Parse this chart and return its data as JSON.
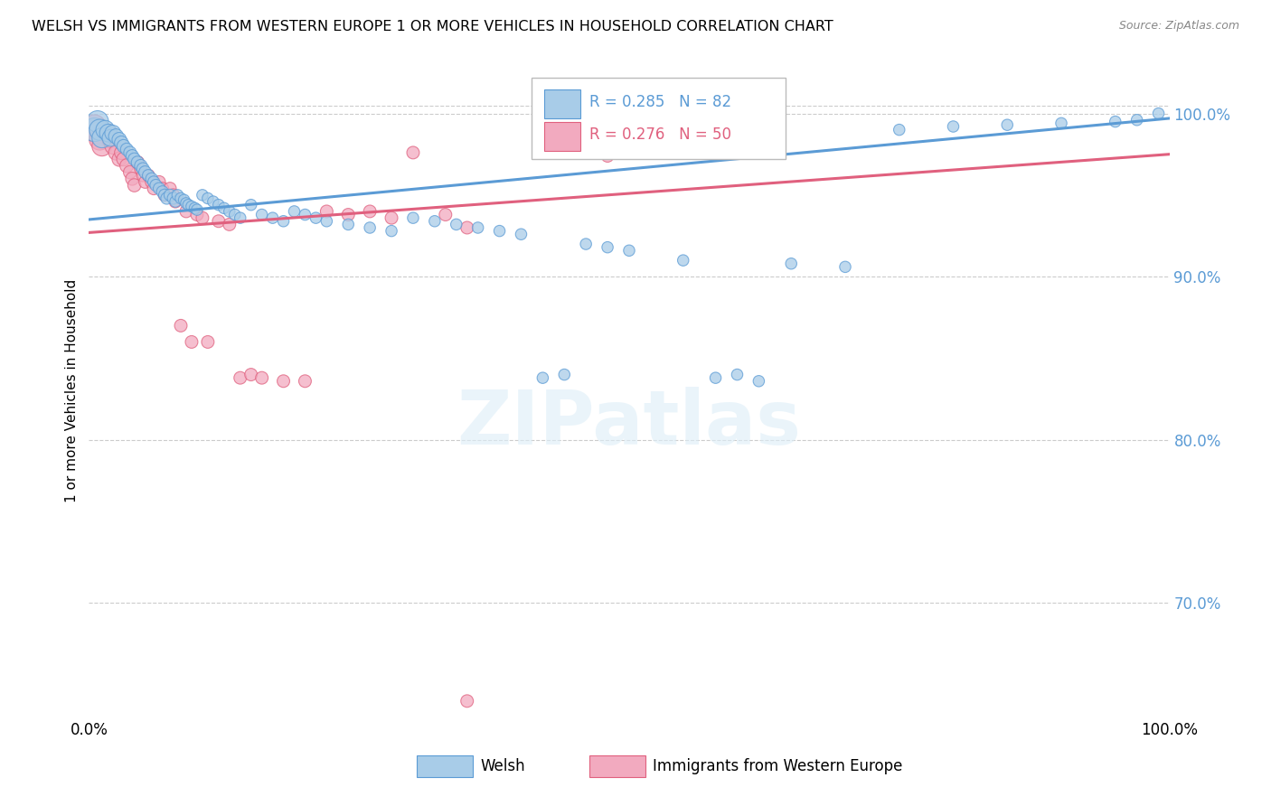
{
  "title": "WELSH VS IMMIGRANTS FROM WESTERN EUROPE 1 OR MORE VEHICLES IN HOUSEHOLD CORRELATION CHART",
  "source": "Source: ZipAtlas.com",
  "ylabel": "1 or more Vehicles in Household",
  "xlim": [
    0.0,
    1.0
  ],
  "ylim": [
    0.63,
    1.03
  ],
  "yticks": [
    0.7,
    0.8,
    0.9,
    1.0
  ],
  "ytick_labels": [
    "70.0%",
    "80.0%",
    "90.0%",
    "100.0%"
  ],
  "xticks": [
    0.0,
    0.1,
    0.2,
    0.3,
    0.4,
    0.5,
    0.6,
    0.7,
    0.8,
    0.9,
    1.0
  ],
  "xtick_labels": [
    "0.0%",
    "",
    "",
    "",
    "",
    "",
    "",
    "",
    "",
    "",
    "100.0%"
  ],
  "welsh_color": "#A8CCE8",
  "immigrant_color": "#F2AABF",
  "trend_welsh_color": "#5B9BD5",
  "trend_immigrant_color": "#E0607E",
  "legend_welsh_R": 0.285,
  "legend_welsh_N": 82,
  "legend_immigrant_R": 0.276,
  "legend_immigrant_N": 50,
  "watermark_text": "ZIPatlas",
  "welsh_x": [
    0.005,
    0.008,
    0.01,
    0.012,
    0.015,
    0.018,
    0.02,
    0.022,
    0.025,
    0.028,
    0.03,
    0.032,
    0.035,
    0.038,
    0.04,
    0.042,
    0.045,
    0.048,
    0.05,
    0.052,
    0.055,
    0.058,
    0.06,
    0.062,
    0.065,
    0.068,
    0.07,
    0.072,
    0.075,
    0.078,
    0.08,
    0.082,
    0.085,
    0.088,
    0.09,
    0.092,
    0.095,
    0.098,
    0.1,
    0.105,
    0.11,
    0.115,
    0.12,
    0.125,
    0.13,
    0.135,
    0.14,
    0.15,
    0.16,
    0.17,
    0.18,
    0.19,
    0.2,
    0.21,
    0.22,
    0.24,
    0.26,
    0.28,
    0.3,
    0.32,
    0.34,
    0.36,
    0.38,
    0.4,
    0.42,
    0.44,
    0.46,
    0.48,
    0.5,
    0.55,
    0.6,
    0.65,
    0.7,
    0.75,
    0.8,
    0.85,
    0.9,
    0.95,
    0.97,
    0.99,
    0.58,
    0.62
  ],
  "welsh_y": [
    0.99,
    0.995,
    0.99,
    0.985,
    0.99,
    0.988,
    0.985,
    0.988,
    0.986,
    0.984,
    0.982,
    0.98,
    0.978,
    0.976,
    0.974,
    0.972,
    0.97,
    0.968,
    0.966,
    0.964,
    0.962,
    0.96,
    0.958,
    0.956,
    0.954,
    0.952,
    0.95,
    0.948,
    0.95,
    0.948,
    0.946,
    0.95,
    0.948,
    0.947,
    0.945,
    0.944,
    0.943,
    0.942,
    0.941,
    0.95,
    0.948,
    0.946,
    0.944,
    0.942,
    0.94,
    0.938,
    0.936,
    0.944,
    0.938,
    0.936,
    0.934,
    0.94,
    0.938,
    0.936,
    0.934,
    0.932,
    0.93,
    0.928,
    0.936,
    0.934,
    0.932,
    0.93,
    0.928,
    0.926,
    0.838,
    0.84,
    0.92,
    0.918,
    0.916,
    0.91,
    0.84,
    0.908,
    0.906,
    0.99,
    0.992,
    0.993,
    0.994,
    0.995,
    0.996,
    1.0,
    0.838,
    0.836
  ],
  "immigrant_x": [
    0.005,
    0.008,
    0.01,
    0.012,
    0.018,
    0.02,
    0.022,
    0.025,
    0.028,
    0.03,
    0.032,
    0.035,
    0.038,
    0.04,
    0.042,
    0.045,
    0.048,
    0.05,
    0.052,
    0.055,
    0.058,
    0.06,
    0.065,
    0.068,
    0.07,
    0.075,
    0.078,
    0.08,
    0.085,
    0.09,
    0.095,
    0.1,
    0.105,
    0.11,
    0.12,
    0.13,
    0.14,
    0.15,
    0.16,
    0.18,
    0.2,
    0.22,
    0.24,
    0.26,
    0.28,
    0.3,
    0.33,
    0.35,
    0.48,
    0.35
  ],
  "immigrant_y": [
    0.992,
    0.988,
    0.984,
    0.98,
    0.988,
    0.984,
    0.98,
    0.976,
    0.972,
    0.976,
    0.972,
    0.968,
    0.964,
    0.96,
    0.956,
    0.97,
    0.966,
    0.962,
    0.958,
    0.962,
    0.958,
    0.954,
    0.958,
    0.954,
    0.95,
    0.954,
    0.95,
    0.946,
    0.87,
    0.94,
    0.86,
    0.938,
    0.936,
    0.86,
    0.934,
    0.932,
    0.838,
    0.84,
    0.838,
    0.836,
    0.836,
    0.94,
    0.938,
    0.94,
    0.936,
    0.976,
    0.938,
    0.93,
    0.974,
    0.64
  ],
  "welsh_sizes": [
    350,
    300,
    280,
    250,
    220,
    200,
    180,
    160,
    140,
    130,
    120,
    110,
    100,
    100,
    100,
    100,
    100,
    100,
    100,
    100,
    90,
    90,
    90,
    90,
    90,
    90,
    90,
    90,
    90,
    90,
    80,
    80,
    80,
    80,
    80,
    80,
    80,
    80,
    80,
    80,
    80,
    80,
    80,
    80,
    80,
    80,
    80,
    80,
    80,
    80,
    80,
    80,
    80,
    80,
    80,
    80,
    80,
    80,
    80,
    80,
    80,
    80,
    80,
    80,
    80,
    80,
    80,
    80,
    80,
    80,
    80,
    80,
    80,
    80,
    80,
    80,
    80,
    80,
    80,
    80,
    80,
    80
  ],
  "immigrant_sizes": [
    350,
    300,
    280,
    250,
    200,
    180,
    160,
    140,
    130,
    120,
    120,
    120,
    110,
    110,
    110,
    110,
    100,
    100,
    100,
    100,
    100,
    100,
    100,
    100,
    100,
    100,
    100,
    100,
    100,
    100,
    100,
    100,
    100,
    100,
    100,
    100,
    100,
    100,
    100,
    100,
    100,
    100,
    100,
    100,
    100,
    100,
    100,
    100,
    100,
    100
  ]
}
